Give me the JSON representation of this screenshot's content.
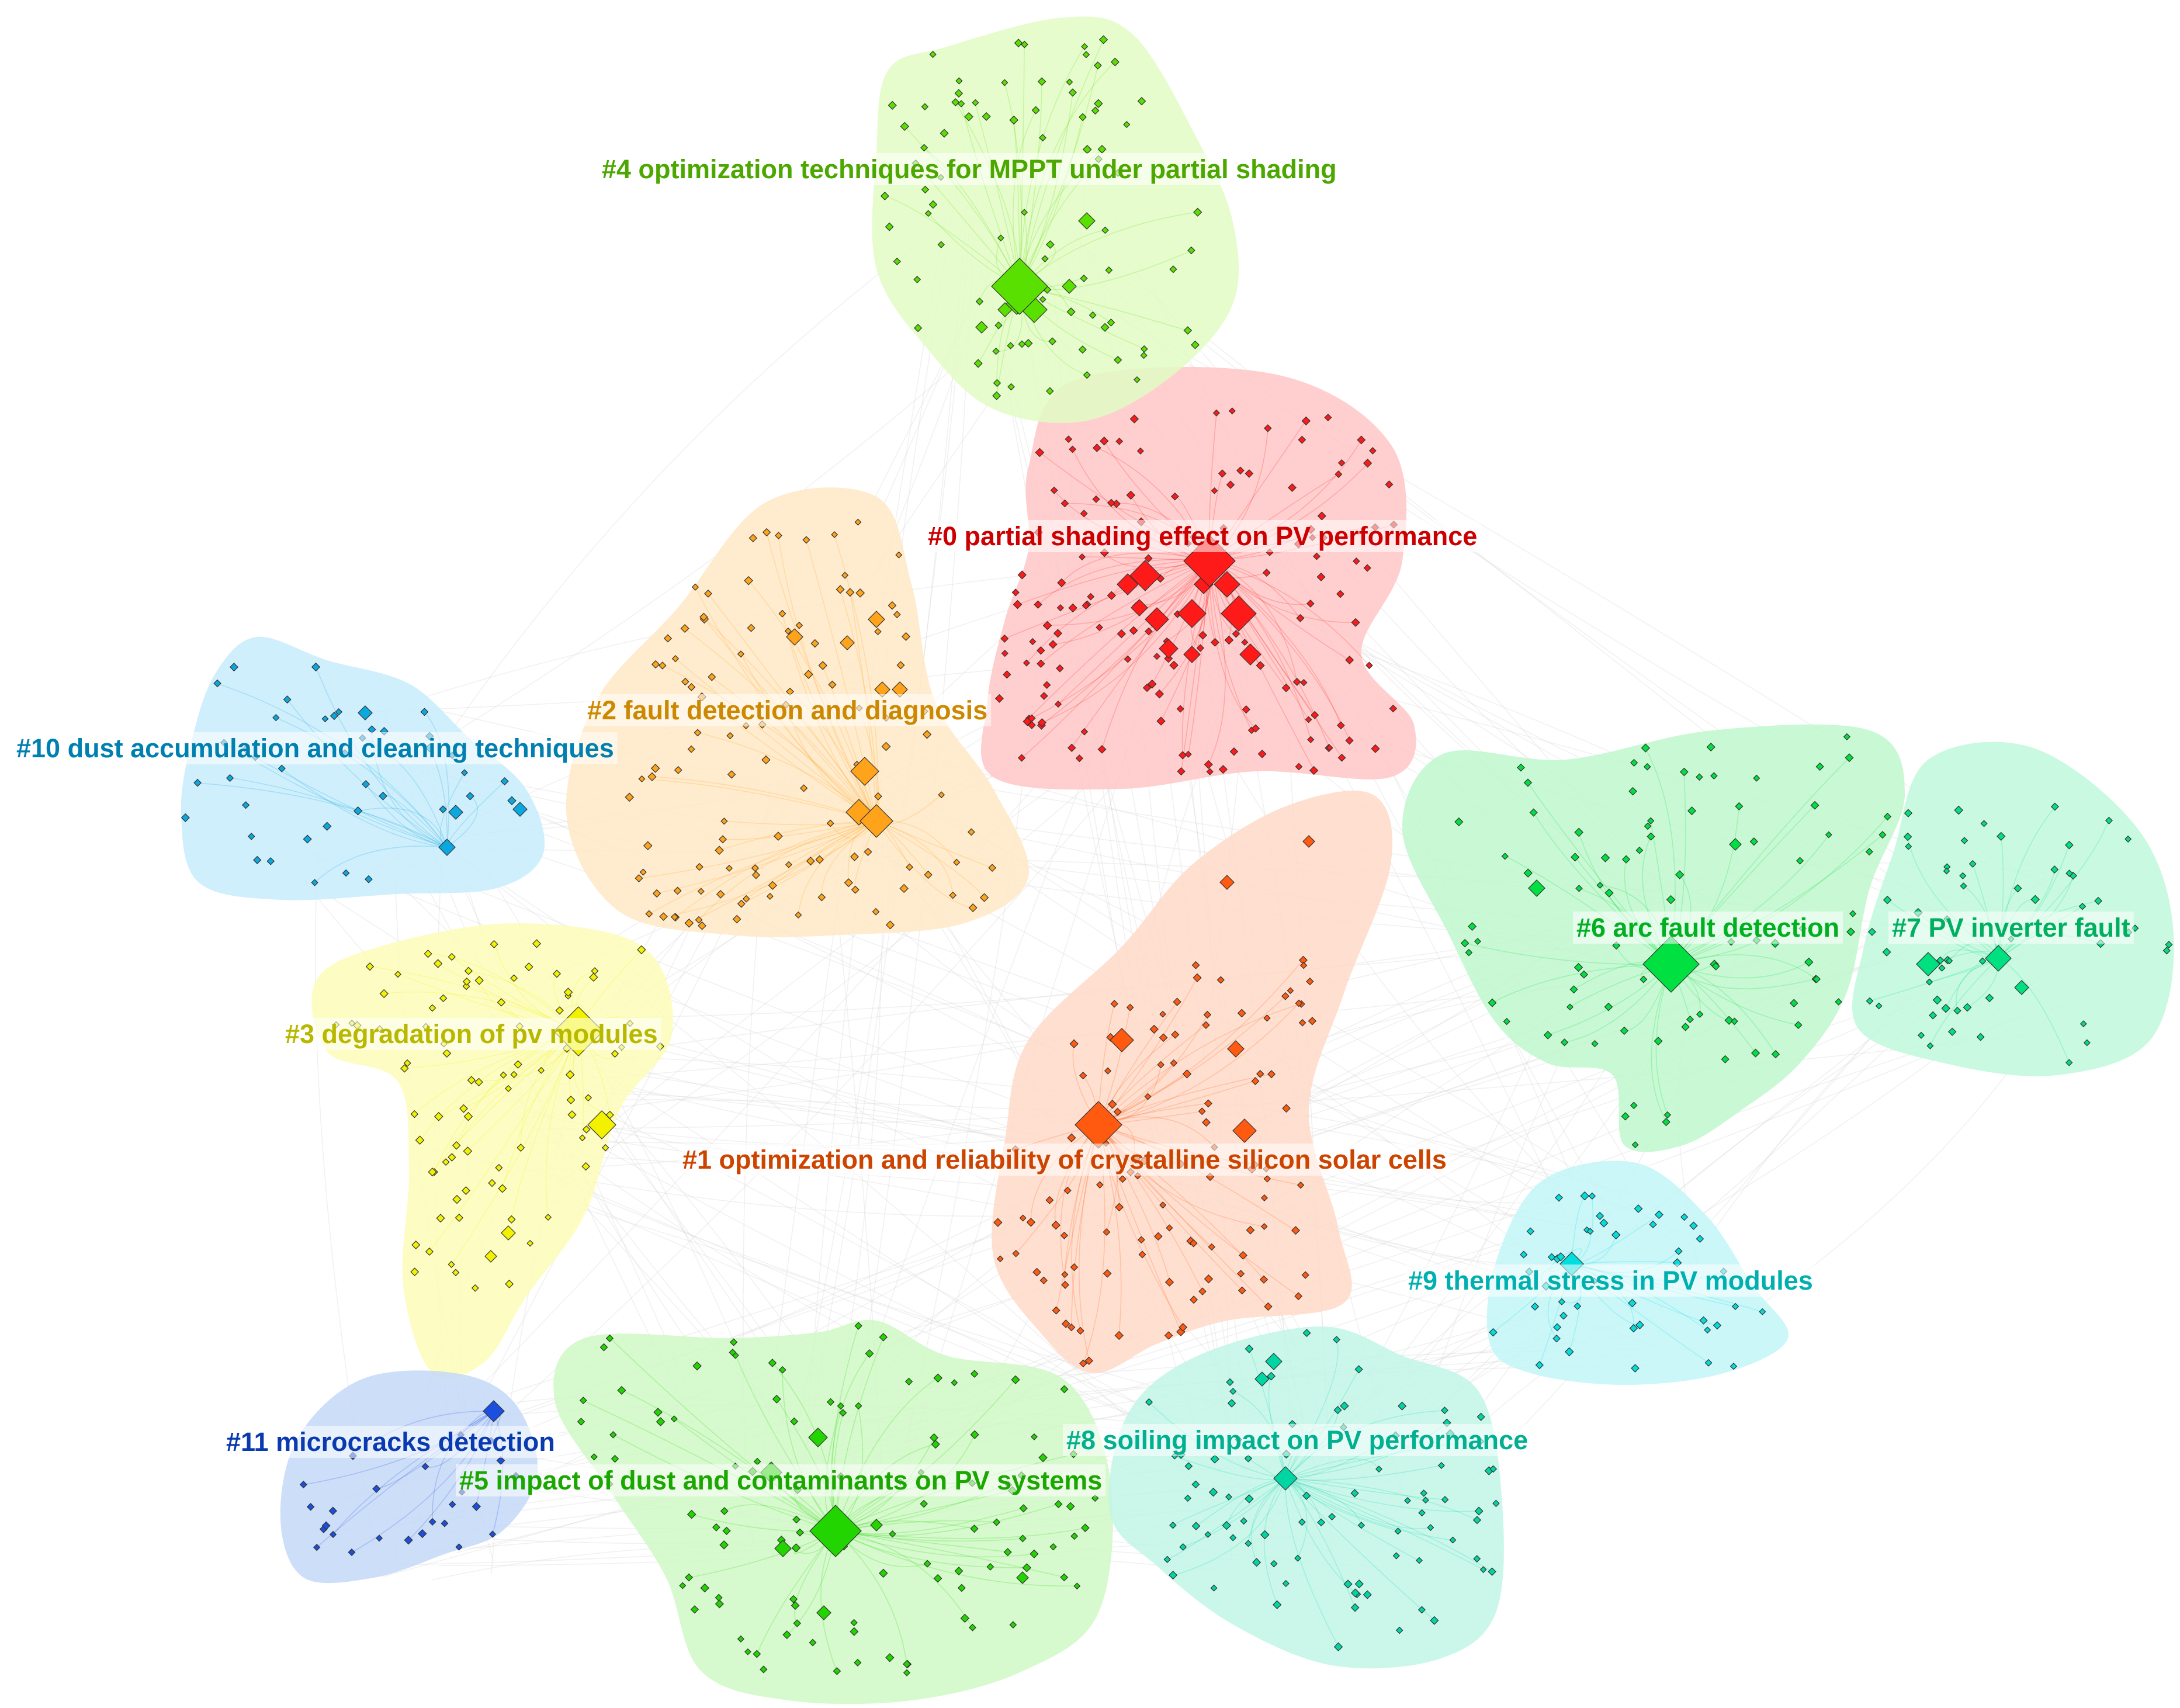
{
  "clusters": [
    {
      "id": "c0",
      "label": "#0 partial shading effect on PV performance",
      "color": "#cc0000",
      "node_color": "#ff1a1a",
      "fill_color": "#ffc7c7"
    },
    {
      "id": "c1",
      "label": "#1 optimization and reliability of crystalline silicon solar cells",
      "color": "#cc4400",
      "node_color": "#ff5a10",
      "fill_color": "#ffd9c8"
    },
    {
      "id": "c2",
      "label": "#2 fault detection and diagnosis",
      "color": "#cc8800",
      "node_color": "#ffa31a",
      "fill_color": "#ffe8c4"
    },
    {
      "id": "c3",
      "label": "#3 degradation of pv modules",
      "color": "#b8b800",
      "node_color": "#f2f200",
      "fill_color": "#fdfdb8"
    },
    {
      "id": "c4",
      "label": "#4 optimization techniques for MPPT under partial shading",
      "color": "#4ca800",
      "node_color": "#59e000",
      "fill_color": "#e2fbc4"
    },
    {
      "id": "c5",
      "label": "#5 impact of dust and contaminants on PV systems",
      "color": "#1aa800",
      "node_color": "#22d400",
      "fill_color": "#cff8c4"
    },
    {
      "id": "c6",
      "label": "#6 arc fault detection",
      "color": "#00b020",
      "node_color": "#00e040",
      "fill_color": "#bff7cc"
    },
    {
      "id": "c7",
      "label": "#7 PV inverter fault",
      "color": "#00b060",
      "node_color": "#00e080",
      "fill_color": "#bff8dc"
    },
    {
      "id": "c8",
      "label": "#8 soiling impact on PV performance",
      "color": "#00b090",
      "node_color": "#00d6a4",
      "fill_color": "#c2f6e8"
    },
    {
      "id": "c9",
      "label": "#9 thermal stress in PV modules",
      "color": "#00b0b0",
      "node_color": "#00dede",
      "fill_color": "#c2f6f8"
    },
    {
      "id": "c10",
      "label": "#10 dust accumulation and cleaning techniques",
      "color": "#0080b0",
      "node_color": "#0ba8e0",
      "fill_color": "#c8ecfc"
    },
    {
      "id": "c11",
      "label": "#11 microcracks detection",
      "color": "#0a3ab0",
      "node_color": "#1a4fe0",
      "fill_color": "#c4d8f8"
    }
  ],
  "background_color": "#ffffff",
  "link_color": "#d8d8d8"
}
